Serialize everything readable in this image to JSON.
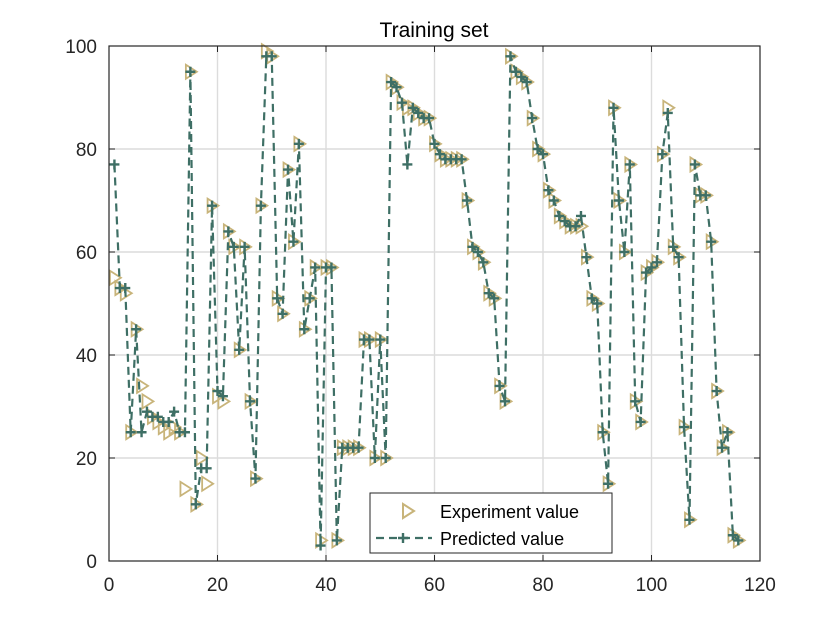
{
  "chart_data": {
    "type": "line",
    "title": "Training set",
    "xlabel": "",
    "ylabel": "",
    "xlim": [
      0,
      120
    ],
    "ylim": [
      0,
      100
    ],
    "xticks": [
      0,
      20,
      40,
      60,
      80,
      100,
      120
    ],
    "yticks": [
      0,
      20,
      40,
      60,
      80,
      100
    ],
    "grid": true,
    "legend_position": "bottom-center",
    "series": [
      {
        "name": "Experiment value",
        "marker": "triangle-right",
        "linestyle": "none",
        "color": "#c8b47a",
        "x": [
          1,
          2,
          3,
          4,
          5,
          6,
          7,
          8,
          9,
          10,
          11,
          12,
          13,
          14,
          15,
          16,
          17,
          18,
          19,
          20,
          21,
          22,
          23,
          24,
          25,
          26,
          27,
          28,
          29,
          30,
          31,
          32,
          33,
          34,
          35,
          36,
          37,
          38,
          39,
          40,
          41,
          42,
          43,
          44,
          45,
          46,
          47,
          48,
          49,
          50,
          51,
          52,
          53,
          54,
          55,
          56,
          57,
          58,
          59,
          60,
          61,
          62,
          63,
          64,
          65,
          66,
          67,
          68,
          69,
          70,
          71,
          72,
          73,
          74,
          75,
          76,
          77,
          78,
          79,
          80,
          81,
          82,
          83,
          84,
          85,
          86,
          87,
          88,
          89,
          90,
          91,
          92,
          93,
          94,
          95,
          96,
          97,
          98,
          99,
          100,
          101,
          102,
          103,
          104,
          105,
          106,
          107,
          108,
          109,
          110,
          111,
          112,
          113,
          114,
          115,
          116
        ],
        "y": [
          55,
          53,
          52,
          25,
          45,
          34,
          31,
          28,
          27,
          26,
          25,
          26,
          25,
          14,
          95,
          11,
          20,
          15,
          69,
          32,
          31,
          64,
          61,
          41,
          61,
          31,
          16,
          69,
          99,
          98,
          51,
          48,
          76,
          62,
          81,
          45,
          51,
          57,
          4,
          57,
          57,
          4,
          22,
          22,
          22,
          22,
          43,
          43,
          20,
          43,
          20,
          93,
          92,
          89,
          88,
          88,
          87,
          86,
          86,
          81,
          79,
          78,
          78,
          78,
          78,
          70,
          61,
          60,
          58,
          52,
          51,
          34,
          31,
          98,
          95,
          94,
          93,
          86,
          80,
          79,
          72,
          70,
          67,
          66,
          65,
          65,
          65,
          59,
          51,
          50,
          25,
          15,
          88,
          70,
          60,
          77,
          31,
          27,
          56,
          57,
          58,
          79,
          88,
          61,
          59,
          26,
          8,
          77,
          71,
          71,
          62,
          33,
          22,
          25,
          5,
          4
        ]
      },
      {
        "name": "Predicted value",
        "marker": "plus",
        "linestyle": "dashed",
        "color": "#3e6f65",
        "x": [
          1,
          2,
          3,
          4,
          5,
          6,
          7,
          8,
          9,
          10,
          11,
          12,
          13,
          14,
          15,
          16,
          17,
          18,
          19,
          20,
          21,
          22,
          23,
          24,
          25,
          26,
          27,
          28,
          29,
          30,
          31,
          32,
          33,
          34,
          35,
          36,
          37,
          38,
          39,
          40,
          41,
          42,
          43,
          44,
          45,
          46,
          47,
          48,
          49,
          50,
          51,
          52,
          53,
          54,
          55,
          56,
          57,
          58,
          59,
          60,
          61,
          62,
          63,
          64,
          65,
          66,
          67,
          68,
          69,
          70,
          71,
          72,
          73,
          74,
          75,
          76,
          77,
          78,
          79,
          80,
          81,
          82,
          83,
          84,
          85,
          86,
          87,
          88,
          89,
          90,
          91,
          92,
          93,
          94,
          95,
          96,
          97,
          98,
          99,
          100,
          101,
          102,
          103,
          104,
          105,
          106,
          107,
          108,
          109,
          110,
          111,
          112,
          113,
          114,
          115,
          116
        ],
        "y": [
          77,
          53,
          53,
          25,
          45,
          25,
          29,
          28,
          28,
          27,
          27,
          29,
          25,
          25,
          95,
          11,
          18,
          18,
          69,
          33,
          32,
          64,
          61,
          41,
          61,
          31,
          16,
          69,
          98,
          98,
          51,
          48,
          76,
          62,
          81,
          45,
          51,
          57,
          3,
          57,
          57,
          4,
          22,
          22,
          22,
          22,
          43,
          43,
          20,
          43,
          20,
          93,
          92,
          89,
          77,
          88,
          87,
          86,
          86,
          81,
          79,
          78,
          78,
          78,
          78,
          70,
          61,
          60,
          58,
          52,
          51,
          34,
          31,
          98,
          95,
          94,
          93,
          86,
          80,
          79,
          72,
          70,
          67,
          66,
          65,
          65,
          67,
          59,
          51,
          50,
          25,
          15,
          88,
          70,
          60,
          77,
          31,
          27,
          56,
          57,
          58,
          79,
          87,
          61,
          59,
          26,
          8,
          77,
          71,
          71,
          62,
          33,
          22,
          25,
          5,
          4
        ]
      }
    ]
  }
}
